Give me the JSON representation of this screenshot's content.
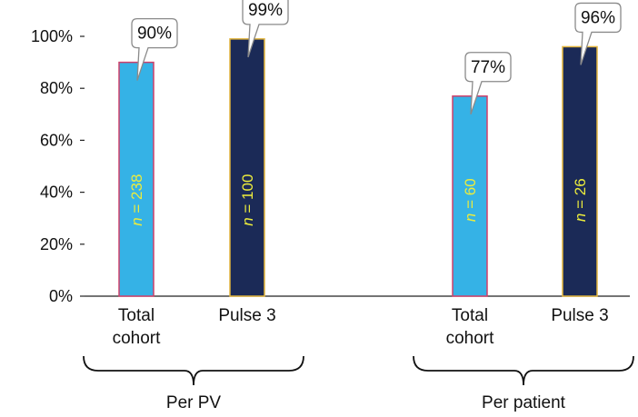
{
  "chart_data": {
    "type": "bar",
    "ylim": [
      0,
      100
    ],
    "y_ticks": [
      0,
      20,
      40,
      60,
      80,
      100
    ],
    "y_tick_labels": [
      "0%",
      "20%",
      "40%",
      "60%",
      "80%",
      "100%"
    ],
    "grid": false,
    "legend": "none",
    "groups": [
      {
        "name": "Per PV",
        "bars": [
          {
            "label_lines": [
              "Total",
              "cohort"
            ],
            "value": 90,
            "value_label": "90%",
            "n_var": "n",
            "n_rest": " = 238",
            "color": "#35b2e6",
            "border": "#d0406a"
          },
          {
            "label_lines": [
              "Pulse 3"
            ],
            "value": 99,
            "value_label": "99%",
            "n_var": "n",
            "n_rest": " = 100",
            "color": "#1b2a57",
            "border": "#e2b43b"
          }
        ]
      },
      {
        "name": "Per patient",
        "bars": [
          {
            "label_lines": [
              "Total",
              "cohort"
            ],
            "value": 77,
            "value_label": "77%",
            "n_var": "n",
            "n_rest": " = 60",
            "color": "#35b2e6",
            "border": "#d0406a"
          },
          {
            "label_lines": [
              "Pulse 3"
            ],
            "value": 96,
            "value_label": "96%",
            "n_var": "n",
            "n_rest": " = 26",
            "color": "#1b2a57",
            "border": "#e2b43b"
          }
        ]
      }
    ],
    "n_label_color": "#ecec3c"
  }
}
